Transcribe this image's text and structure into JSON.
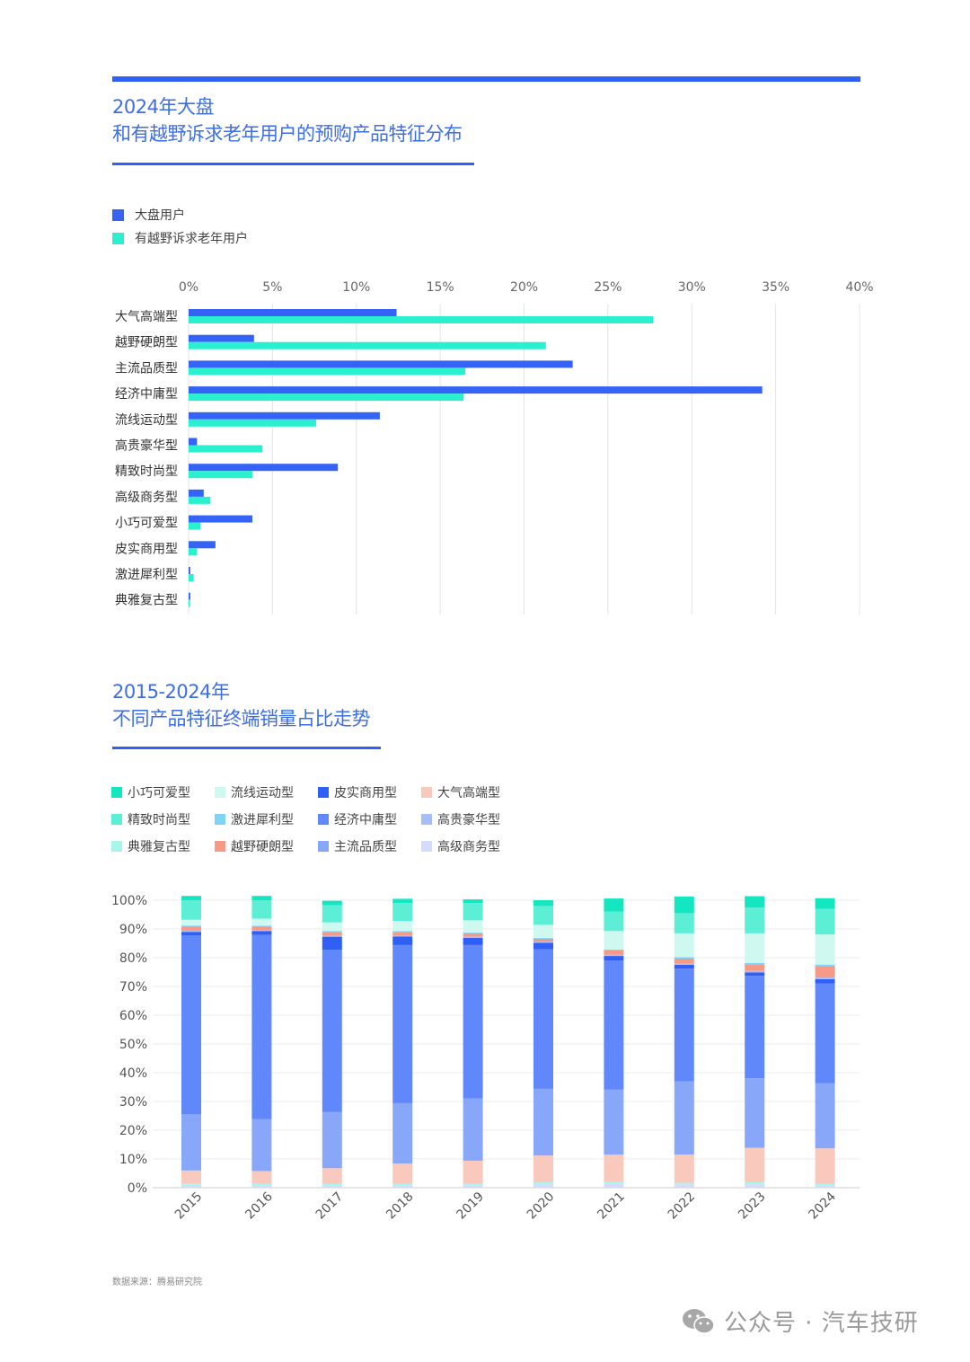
{
  "chart1": {
    "title_line1": "2024年大盘",
    "title_line2": "和有越野诉求老年用户的预购产品特征分布",
    "legend": [
      {
        "name": "大盘用户",
        "color": "#3563f5"
      },
      {
        "name": "有越野诉求老年用户",
        "color": "#2af0cf"
      }
    ]
  },
  "chart2": {
    "title_line1": "2015-2024年",
    "title_line2": "不同产品特征终端销量占比走势",
    "legend": [
      {
        "name": "小巧可爱型",
        "color": "#14e6c2"
      },
      {
        "name": "流线运动型",
        "color": "#cff8f1"
      },
      {
        "name": "皮实商用型",
        "color": "#2f5ff5"
      },
      {
        "name": "大气高端型",
        "color": "#f9c9bd"
      },
      {
        "name": "精致时尚型",
        "color": "#5cefd5"
      },
      {
        "name": "激进犀利型",
        "color": "#7fd3f7"
      },
      {
        "name": "经济中庸型",
        "color": "#6088fa"
      },
      {
        "name": "高贵豪华型",
        "color": "#a7bdf7"
      },
      {
        "name": "典雅复古型",
        "color": "#a7f6e8"
      },
      {
        "name": "越野硬朗型",
        "color": "#f49a86"
      },
      {
        "name": "主流品质型",
        "color": "#89a7f8"
      },
      {
        "name": "高级商务型",
        "color": "#d3ddfb"
      }
    ]
  },
  "chart_data": [
    {
      "type": "bar",
      "orientation": "horizontal",
      "categories": [
        "大气高端型",
        "越野硬朗型",
        "主流品质型",
        "经济中庸型",
        "流线运动型",
        "高贵豪华型",
        "精致时尚型",
        "高级商务型",
        "小巧可爱型",
        "皮实商用型",
        "激进犀利型",
        "典雅复古型"
      ],
      "series": [
        {
          "name": "大盘用户",
          "color": "#3563f5",
          "values": [
            12.4,
            3.9,
            22.9,
            34.2,
            11.4,
            0.5,
            8.9,
            0.9,
            3.8,
            1.6,
            0.1,
            0.1
          ]
        },
        {
          "name": "有越野诉求老年用户",
          "color": "#2af0cf",
          "values": [
            27.7,
            21.3,
            16.5,
            16.4,
            7.6,
            4.4,
            3.8,
            1.3,
            0.7,
            0.5,
            0.3,
            0.05
          ]
        }
      ],
      "x_tick_labels": [
        "0%",
        "5%",
        "10%",
        "15%",
        "20%",
        "25%",
        "30%",
        "35%",
        "40%"
      ],
      "xlim": [
        0,
        40
      ],
      "grid": true,
      "legend_position": "top-left"
    },
    {
      "type": "bar",
      "stacked": true,
      "categories": [
        "2015",
        "2016",
        "2017",
        "2018",
        "2019",
        "2020",
        "2021",
        "2022",
        "2023",
        "2024"
      ],
      "y_tick_labels": [
        "0%",
        "10%",
        "20%",
        "30%",
        "40%",
        "50%",
        "60%",
        "70%",
        "80%",
        "90%",
        "100%"
      ],
      "ylim": [
        0,
        100
      ],
      "grid": true,
      "series": [
        {
          "name": "高级商务型",
          "color": "#d3ddfb",
          "values": [
            1.0,
            0.8,
            0.9,
            0.9,
            1.0,
            1.2,
            1.3,
            1.2,
            1.2,
            0.8
          ]
        },
        {
          "name": "典雅复古型",
          "color": "#a7f6e8",
          "values": [
            0.5,
            0.5,
            0.4,
            0.5,
            0.4,
            0.7,
            0.7,
            0.5,
            0.7,
            0.5
          ]
        },
        {
          "name": "大气高端型",
          "color": "#f9c9bd",
          "values": [
            4.5,
            4.5,
            5.5,
            7.0,
            8.0,
            9.3,
            9.5,
            9.8,
            12.0,
            12.4
          ]
        },
        {
          "name": "主流品质型",
          "color": "#89a7f8",
          "values": [
            19.5,
            18.0,
            19.5,
            21.0,
            21.7,
            23.2,
            22.6,
            25.5,
            24.2,
            22.6
          ]
        },
        {
          "name": "经济中庸型",
          "color": "#6088fa",
          "values": [
            62.3,
            64.1,
            56.5,
            55.0,
            53.3,
            48.5,
            44.9,
            39.2,
            35.6,
            34.7
          ]
        },
        {
          "name": "皮实商用型",
          "color": "#2f5ff5",
          "values": [
            1.2,
            1.4,
            4.5,
            3.0,
            2.5,
            2.3,
            1.6,
            1.3,
            1.2,
            1.5
          ]
        },
        {
          "name": "高贵豪华型",
          "color": "#a7bdf7",
          "values": [
            0.4,
            0.3,
            0.4,
            0.4,
            0.4,
            0.4,
            0.4,
            0.4,
            0.5,
            0.6
          ]
        },
        {
          "name": "越野硬朗型",
          "color": "#f49a86",
          "values": [
            1.5,
            1.2,
            1.3,
            1.2,
            1.2,
            1.0,
            1.5,
            1.8,
            2.3,
            4.0
          ]
        },
        {
          "name": "激进犀利型",
          "color": "#7fd3f7",
          "values": [
            0.3,
            0.3,
            0.3,
            0.3,
            0.3,
            0.3,
            0.3,
            0.5,
            0.5,
            0.5
          ]
        },
        {
          "name": "流线运动型",
          "color": "#cff8f1",
          "values": [
            2.0,
            2.5,
            3.0,
            3.5,
            4.2,
            4.6,
            6.5,
            8.3,
            10.3,
            10.5
          ]
        },
        {
          "name": "精致时尚型",
          "color": "#5cefd5",
          "values": [
            6.8,
            6.4,
            6.0,
            6.2,
            6.0,
            6.5,
            6.8,
            7.0,
            9.0,
            8.9
          ]
        },
        {
          "name": "小巧可爱型",
          "color": "#14e6c2",
          "values": [
            1.5,
            1.5,
            1.5,
            1.5,
            1.3,
            2.0,
            4.5,
            5.8,
            3.9,
            3.7
          ]
        }
      ]
    }
  ],
  "footer": {
    "source": "数据来源：腾易研究院",
    "watermark": "公众号 · 汽车技研"
  }
}
